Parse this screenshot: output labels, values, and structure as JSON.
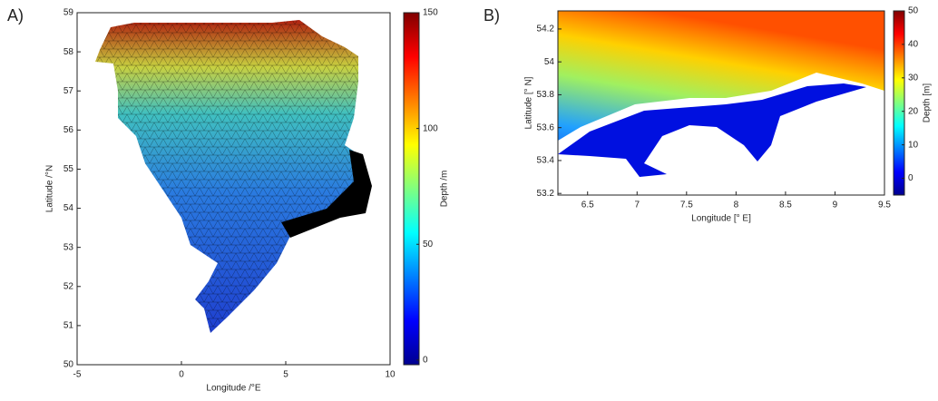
{
  "panels": [
    {
      "label": "A)",
      "xlabel": "Longitude /°E",
      "ylabel": "Latitude /°N",
      "xlim": [
        -5,
        10
      ],
      "ylim": [
        50,
        59
      ],
      "xticks": [
        -5,
        0,
        5,
        10
      ],
      "yticks": [
        50,
        51,
        52,
        53,
        54,
        55,
        56,
        57,
        58,
        59
      ],
      "colorbar": {
        "label": "Depth /m",
        "lim": [
          -2,
          150
        ],
        "ticks": [
          0,
          50,
          100,
          150
        ]
      }
    },
    {
      "label": "B)",
      "xlabel": "Longitude [° E]",
      "ylabel": "Latitude [° N]",
      "xlim": [
        6.2,
        9.5
      ],
      "ylim": [
        53.19,
        54.31
      ],
      "xticks": [
        6.5,
        7,
        7.5,
        8,
        8.5,
        9,
        9.5
      ],
      "yticks": [
        53.2,
        53.4,
        53.6,
        53.8,
        54,
        54.2
      ],
      "colorbar": {
        "label": "Depth [m]",
        "lim": [
          -5,
          50
        ],
        "ticks": [
          0,
          10,
          20,
          30,
          40,
          50
        ]
      }
    }
  ]
}
